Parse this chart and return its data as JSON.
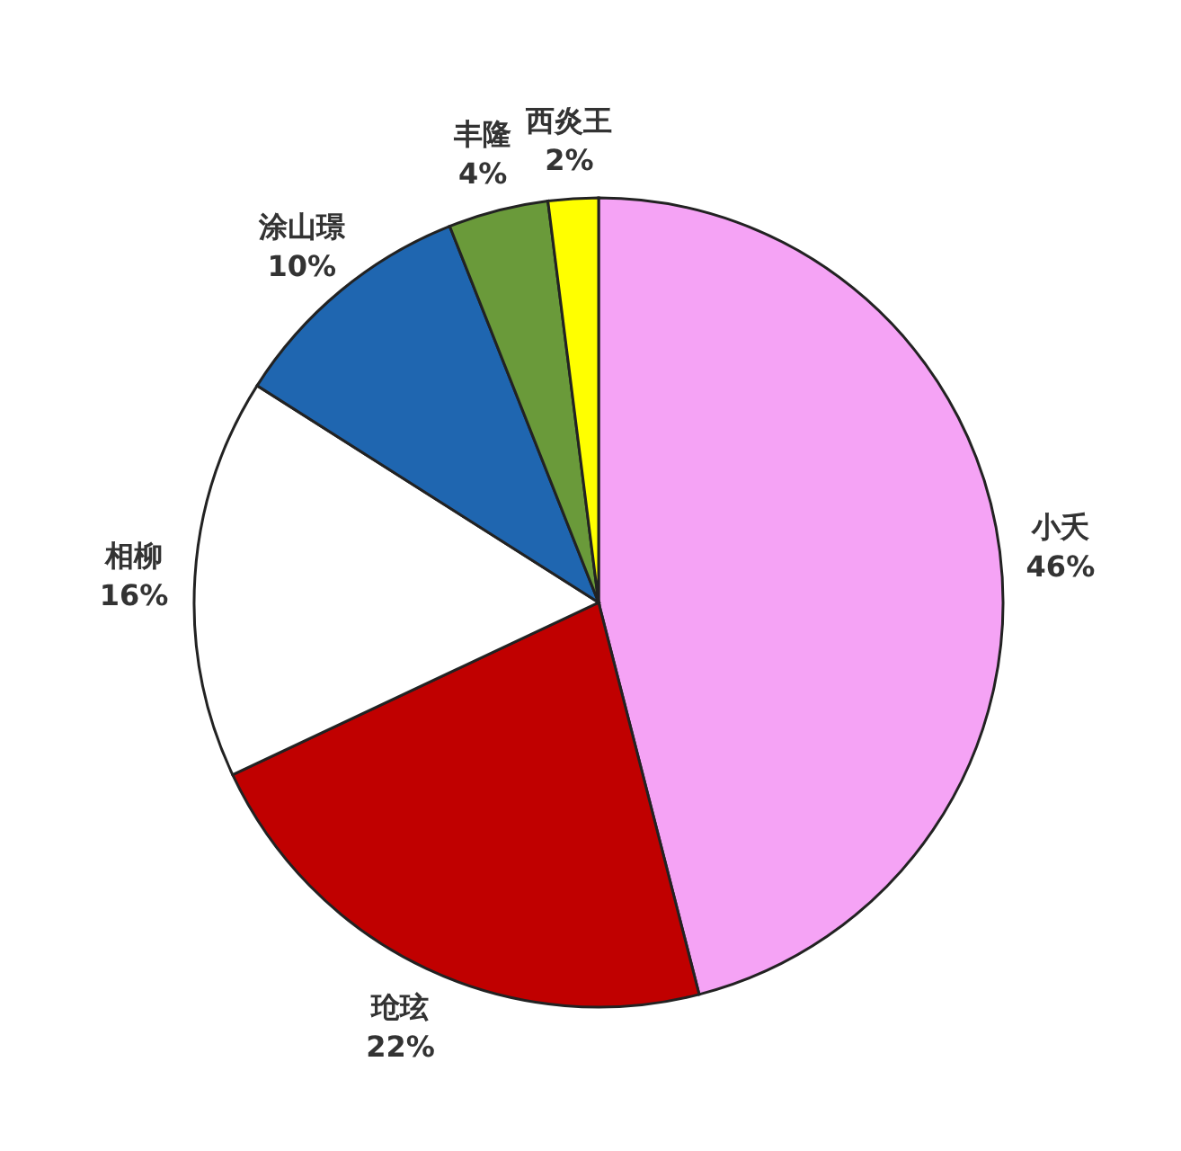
{
  "chart_data": {
    "type": "pie",
    "categories": [
      "小夭",
      "玱玹",
      "相柳",
      "涂山璟",
      "丰隆",
      "西炎王"
    ],
    "values": [
      46,
      22,
      16,
      10,
      4,
      2
    ],
    "value_labels": [
      "46%",
      "22%",
      "16%",
      "10%",
      "4%",
      "2%"
    ],
    "colors": [
      "#f5a3f5",
      "#c00000",
      "#ffffff",
      "#1f66b0",
      "#6a9a3a",
      "#ffff00"
    ],
    "legend": false
  }
}
